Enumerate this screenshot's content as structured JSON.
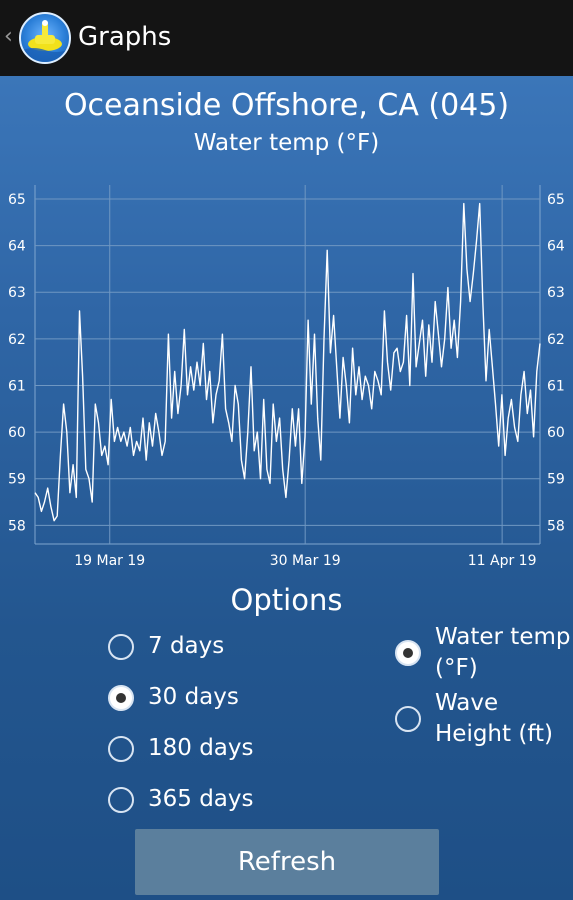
{
  "app": {
    "title": "Graphs"
  },
  "header": {
    "location": "Oceanside Offshore, CA (045)",
    "subtitle": "Water temp (°F)"
  },
  "chart_data": {
    "type": "line",
    "title": "Oceanside Offshore, CA (045)",
    "subtitle": "Water temp (°F)",
    "ylim": [
      57.6,
      65.3
    ],
    "y_ticks": [
      "58",
      "59",
      "60",
      "61",
      "62",
      "63",
      "64",
      "65"
    ],
    "x_ticks": [
      "19 Mar 19",
      "30 Mar 19",
      "11 Apr 19"
    ],
    "grid": true,
    "series": [
      {
        "values": [
          58.7,
          58.6,
          58.3,
          58.5,
          58.8,
          58.4,
          58.1,
          58.2,
          59.5,
          60.6,
          60.0,
          58.7,
          59.3,
          58.6,
          62.6,
          61.2,
          59.2,
          59.0,
          58.5,
          60.6,
          60.2,
          59.5,
          59.7,
          59.3,
          60.7,
          59.8,
          60.1,
          59.8,
          60.0,
          59.7,
          60.1,
          59.5,
          59.8,
          59.6,
          60.3,
          59.4,
          60.2,
          59.7,
          60.4,
          60.0,
          59.5,
          59.8,
          62.1,
          60.3,
          61.3,
          60.4,
          61.0,
          62.2,
          60.8,
          61.4,
          60.9,
          61.5,
          61.0,
          61.9,
          60.7,
          61.3,
          60.2,
          60.8,
          61.1,
          62.1,
          60.5,
          60.2,
          59.8,
          61.0,
          60.6,
          59.4,
          59.0,
          60.0,
          61.4,
          59.6,
          60.0,
          59.0,
          60.7,
          59.2,
          58.9,
          60.6,
          59.8,
          60.3,
          59.2,
          58.6,
          59.4,
          60.5,
          59.7,
          60.5,
          58.9,
          59.9,
          62.4,
          60.6,
          62.1,
          60.3,
          59.4,
          62.0,
          63.9,
          61.7,
          62.5,
          61.4,
          60.3,
          61.6,
          61.0,
          60.2,
          61.8,
          60.8,
          61.4,
          60.7,
          61.2,
          61.0,
          60.5,
          61.3,
          61.1,
          60.8,
          62.6,
          61.5,
          60.9,
          61.7,
          61.8,
          61.3,
          61.5,
          62.5,
          61.0,
          63.4,
          61.4,
          61.9,
          62.4,
          61.2,
          62.3,
          61.5,
          62.8,
          62.1,
          61.4,
          62.0,
          63.1,
          61.8,
          62.4,
          61.6,
          62.8,
          64.9,
          63.5,
          62.8,
          63.4,
          64.1,
          64.9,
          62.8,
          61.1,
          62.2,
          61.4,
          60.6,
          59.7,
          60.8,
          59.5,
          60.3,
          60.7,
          60.1,
          59.8,
          60.8,
          61.3,
          60.4,
          60.9,
          59.9,
          61.3,
          61.9
        ],
        "color": "#ffffff"
      }
    ]
  },
  "options": {
    "title": "Options",
    "periods": [
      {
        "label": "7 days",
        "checked": false
      },
      {
        "label": "30 days",
        "checked": true
      },
      {
        "label": "180 days",
        "checked": false
      },
      {
        "label": "365 days",
        "checked": false
      }
    ],
    "metrics": [
      {
        "label": "Water temp (°F)",
        "checked": true
      },
      {
        "label": "Wave Height (ft)",
        "checked": false
      }
    ]
  },
  "refresh_label": "Refresh"
}
